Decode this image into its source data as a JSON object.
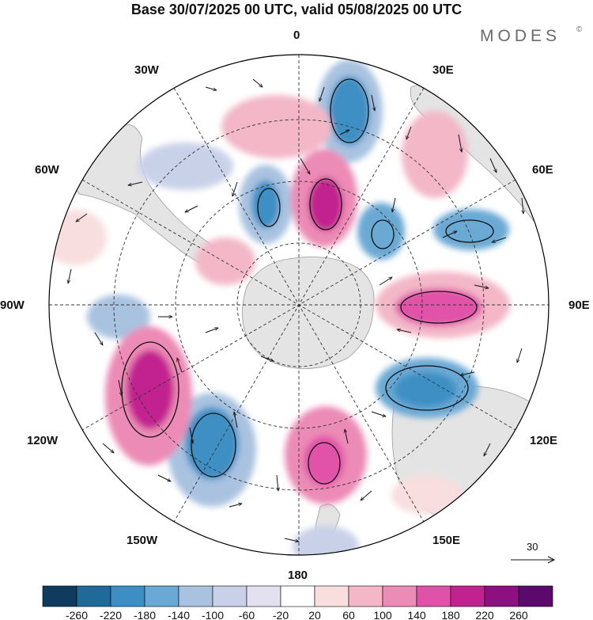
{
  "title": "Base 30/07/2025 00 UTC, valid 05/08/2025 00 UTC",
  "brand": {
    "name": "MODES",
    "mark": "©"
  },
  "longitude_labels": {
    "lon_0": "0",
    "lon_30e": "30E",
    "lon_60e": "60E",
    "lon_90e": "90E",
    "lon_120e": "120E",
    "lon_150e": "150E",
    "lon_180": "180",
    "lon_150w": "150W",
    "lon_120w": "120W",
    "lon_90w": "90W",
    "lon_60w": "60W",
    "lon_30w": "30W"
  },
  "reference_vector": {
    "label": "30"
  },
  "colorbar": {
    "labels": [
      "-260",
      "-220",
      "-180",
      "-140",
      "-100",
      "-60",
      "-20",
      "20",
      "60",
      "100",
      "140",
      "180",
      "220",
      "260"
    ],
    "colors": [
      "#0f3c5e",
      "#1f6a99",
      "#3c8fc4",
      "#6aa9d4",
      "#a8c2e0",
      "#c9d1e9",
      "#e3e1f0",
      "#ffffff",
      "#f8dede",
      "#f3b7c7",
      "#ec8bb6",
      "#e052a8",
      "#c2228f",
      "#8e0f7f",
      "#5a0a6a"
    ]
  },
  "colors": {
    "land": "#e4e4e4",
    "grid": "#333333",
    "frame": "#000000"
  }
}
